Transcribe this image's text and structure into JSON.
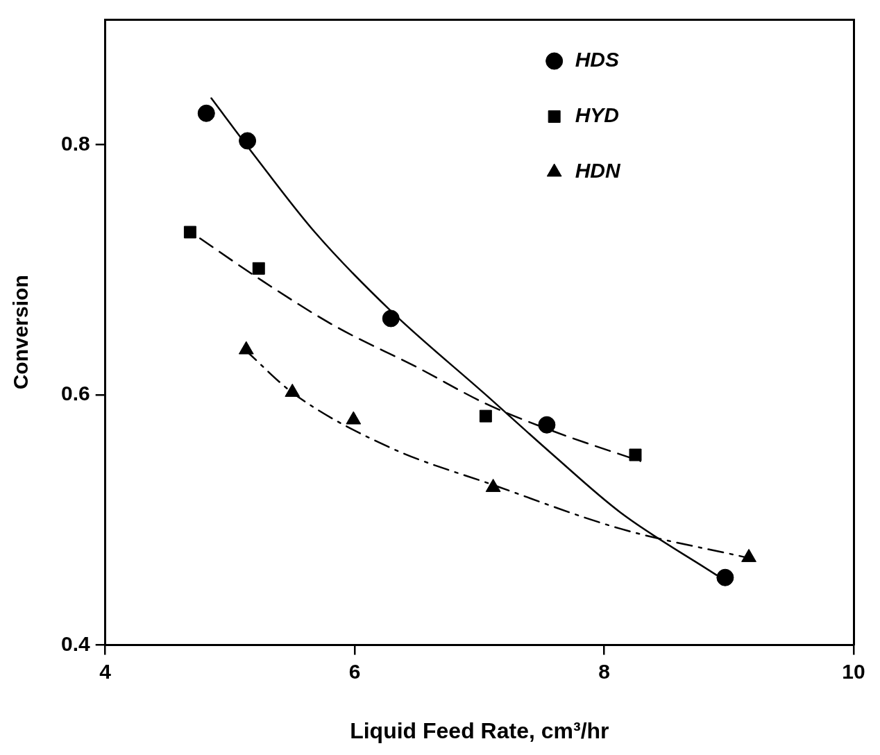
{
  "chart_data": {
    "type": "scatter",
    "xlabel": "Liquid Feed Rate, cm³/hr",
    "ylabel": "Conversion",
    "xlim": [
      4,
      10
    ],
    "xticks": [
      4,
      6,
      8,
      10
    ],
    "ylim": [
      0.4,
      0.9
    ],
    "yticks": [
      0.4,
      0.6,
      0.8
    ],
    "grid": false,
    "legend": "top right",
    "series": [
      {
        "name": "HDS",
        "type": "scatter",
        "marker": "circle",
        "color": "#000000",
        "x": [
          4.81,
          5.14,
          6.29,
          7.54,
          8.97
        ],
        "values": [
          0.825,
          0.803,
          0.661,
          0.576,
          0.454
        ]
      },
      {
        "name": "HYD",
        "type": "scatter",
        "marker": "square",
        "color": "#000000",
        "x": [
          4.68,
          5.23,
          7.05,
          8.25
        ],
        "values": [
          0.73,
          0.701,
          0.583,
          0.552
        ]
      },
      {
        "name": "HDN",
        "type": "scatter",
        "marker": "triangle",
        "color": "#000000",
        "x": [
          5.13,
          5.5,
          5.99,
          7.11,
          9.16
        ],
        "values": [
          0.636,
          0.602,
          0.58,
          0.526,
          0.47
        ]
      },
      {
        "type": "line",
        "line_style": "solid",
        "color": "#000000",
        "x": [
          4.85,
          5.19,
          5.68,
          6.29,
          7.04,
          7.59,
          8.13,
          8.9
        ],
        "values": [
          0.837,
          0.792,
          0.73,
          0.667,
          0.601,
          0.552,
          0.506,
          0.456
        ]
      },
      {
        "type": "line",
        "line_style": "dashed",
        "color": "#000000",
        "x": [
          4.76,
          5.23,
          5.84,
          6.5,
          7.05,
          7.59,
          8.29
        ],
        "values": [
          0.725,
          0.693,
          0.655,
          0.622,
          0.593,
          0.571,
          0.547
        ]
      },
      {
        "type": "line",
        "line_style": "dashdot",
        "color": "#000000",
        "x": [
          5.12,
          5.51,
          6.28,
          7.11,
          8.13,
          9.14
        ],
        "values": [
          0.636,
          0.601,
          0.558,
          0.528,
          0.493,
          0.47
        ]
      }
    ]
  }
}
